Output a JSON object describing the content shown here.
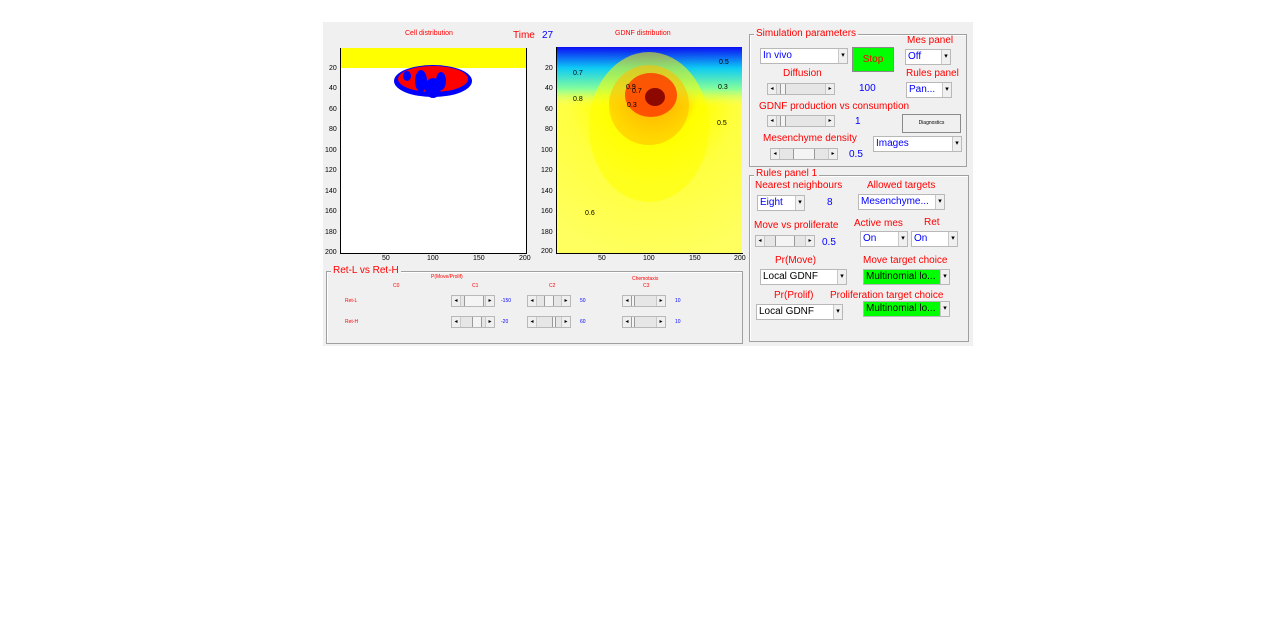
{
  "time": {
    "label": "Time",
    "value": "27"
  },
  "cell_plot": {
    "title": "Cell distribution",
    "x_ticks": [
      "50",
      "100",
      "150",
      "200"
    ],
    "y_ticks": [
      "20",
      "40",
      "60",
      "80",
      "100",
      "120",
      "140",
      "160",
      "180",
      "200"
    ],
    "colors": {
      "background": "#ffffff",
      "band": "#ffff00",
      "cells_red": "#ff0000",
      "cells_blue": "#0000ff"
    }
  },
  "gdnf_plot": {
    "title": "GDNF distribution",
    "x_ticks": [
      "50",
      "100",
      "150",
      "200"
    ],
    "y_ticks": [
      "20",
      "40",
      "60",
      "80",
      "100",
      "120",
      "140",
      "160",
      "180",
      "200"
    ],
    "contour_labels": [
      "0.7",
      "0.5",
      "0.9",
      "0.3",
      "0.8",
      "0.3",
      "0.5",
      "0.6",
      "0.7"
    ],
    "colormap": [
      "#0000ff",
      "#00ffff",
      "#ffff00",
      "#ff8000",
      "#ff0000",
      "#800000"
    ]
  },
  "sim_params": {
    "title": "Simulation parameters",
    "mode_select": "In vivo",
    "stop_label": "Stop",
    "diffusion_label": "Diffusion",
    "diffusion_value": "100",
    "diffusion_slider": 0.1,
    "gdnf_label": "GDNF production vs consumption",
    "gdnf_value": "1",
    "gdnf_slider": 0.1,
    "mes_density_label": "Mesenchyme density",
    "mes_density_value": "0.5",
    "mes_density_slider": 0.5,
    "mes_panel_label": "Mes panel",
    "mes_panel_select": "Off",
    "rules_panel_label": "Rules panel",
    "rules_panel_select": "Pan...",
    "diagnostics_label": "Diagnostics",
    "view_select": "Images"
  },
  "rules_panel": {
    "title": "Rules panel 1",
    "nearest_label": "Nearest neighbours",
    "nearest_select": "Eight",
    "nearest_value": "8",
    "allowed_label": "Allowed targets",
    "allowed_select": "Mesenchyme...",
    "move_prolif_label": "Move vs proliferate",
    "move_prolif_value": "0.5",
    "move_prolif_slider": 0.5,
    "active_mes_label": "Active mes",
    "active_mes_select": "On",
    "ret_label": "Ret",
    "ret_select": "On",
    "pr_move_label": "Pr(Move)",
    "pr_move_select": "Local GDNF",
    "move_target_label": "Move target choice",
    "move_target_select": "Multinomial lo...",
    "pr_prolif_label": "Pr(Prolif)",
    "pr_prolif_select": "Local GDNF",
    "prolif_target_label": "Proliferation target choice",
    "prolif_target_select": "Multinomial lo..."
  },
  "ret_panel": {
    "title": "Ret-L vs Ret-H",
    "group1_label": "P(Move/Prolif)",
    "group2_label": "Chemotaxis",
    "col_labels": [
      "C0",
      "C1",
      "C2",
      "C3"
    ],
    "rows": [
      {
        "label": "Ret-L",
        "c1": "-150",
        "c2": "50",
        "c3": "10"
      },
      {
        "label": "Ret-H",
        "c1": "-20",
        "c2": "60",
        "c3": "10"
      }
    ]
  }
}
